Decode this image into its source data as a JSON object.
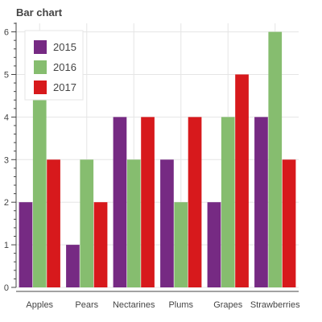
{
  "chart_data": {
    "type": "bar",
    "title": "Bar chart",
    "xlabel": "",
    "ylabel": "",
    "categories": [
      "Apples",
      "Pears",
      "Nectarines",
      "Plums",
      "Grapes",
      "Strawberries"
    ],
    "series": [
      {
        "name": "2015",
        "color": "#762a83",
        "values": [
          2,
          1,
          4,
          3,
          2,
          4
        ]
      },
      {
        "name": "2016",
        "color": "#86bd6f",
        "values": [
          5,
          3,
          3,
          2,
          4,
          6
        ]
      },
      {
        "name": "2017",
        "color": "#d7191c",
        "values": [
          3,
          2,
          4,
          4,
          5,
          3
        ]
      }
    ],
    "ylim": [
      0,
      6.2
    ],
    "yticks": [
      0,
      1,
      2,
      3,
      4,
      5,
      6
    ],
    "grid": true,
    "legend_position": "top-left"
  }
}
